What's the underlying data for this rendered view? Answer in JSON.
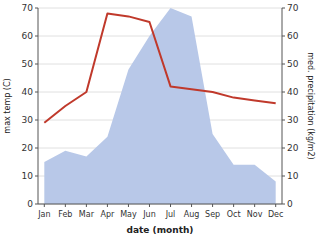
{
  "chart_data": {
    "type": "line",
    "xlabel": "date (month)",
    "ylabel": "max temp (C)",
    "y2label": "med. precipitation (kg/m2)",
    "categories": [
      "Jan",
      "Feb",
      "Mar",
      "Apr",
      "May",
      "Jun",
      "Jul",
      "Aug",
      "Sep",
      "Oct",
      "Nov",
      "Dec"
    ],
    "series": [
      {
        "type": "area",
        "axis": "y2",
        "color": "#b8c8e8",
        "values": [
          15,
          19,
          17,
          24,
          48,
          60,
          70,
          67,
          25,
          14,
          14,
          8
        ]
      },
      {
        "type": "line",
        "color": "#c0392b",
        "values": [
          29,
          35,
          40,
          68,
          67,
          65,
          42,
          41,
          40,
          38,
          37,
          36
        ]
      }
    ],
    "ylim": [
      0,
      70
    ],
    "yticks": [
      0,
      10,
      20,
      30,
      40,
      50,
      60,
      70
    ],
    "y2lim": [
      0,
      70
    ],
    "y2ticks": [
      0,
      10,
      20,
      30,
      40,
      50,
      60,
      70
    ],
    "grid": true
  }
}
